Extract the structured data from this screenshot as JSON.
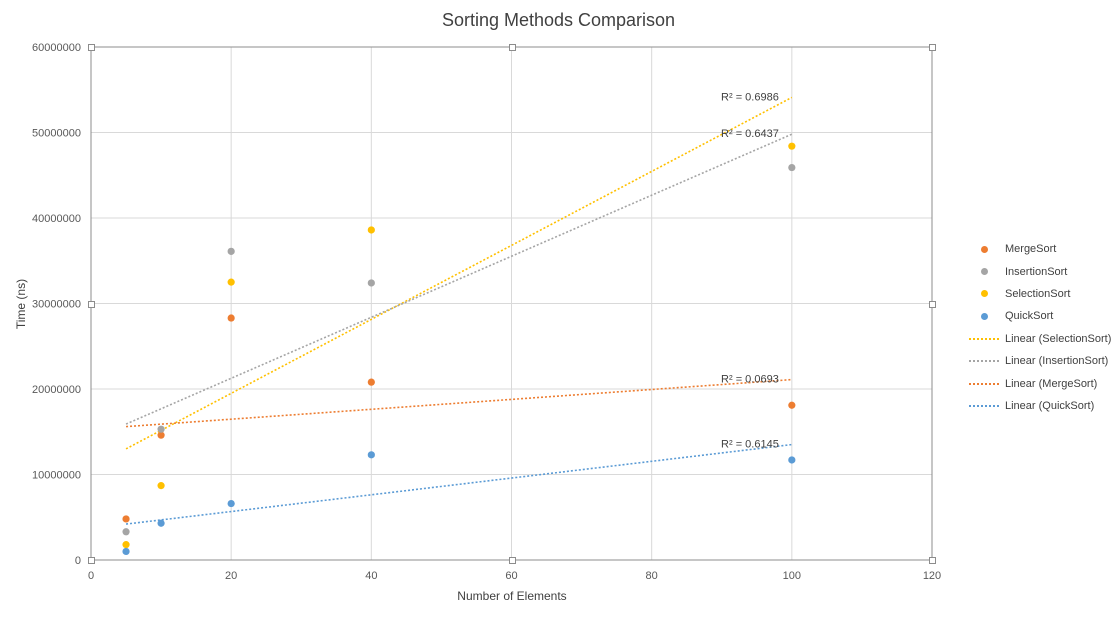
{
  "chart_data": {
    "type": "scatter",
    "title": "Sorting Methods Comparison",
    "xlabel": "Number of Elements",
    "ylabel": "Time (ns)",
    "xlim": [
      0,
      120
    ],
    "ylim": [
      0,
      60000000
    ],
    "x_ticks": [
      0,
      20,
      40,
      60,
      80,
      100,
      120
    ],
    "y_ticks": [
      0,
      10000000,
      20000000,
      30000000,
      40000000,
      50000000,
      60000000
    ],
    "x_tick_labels": [
      "0",
      "20",
      "40",
      "60",
      "80",
      "100",
      "120"
    ],
    "y_tick_labels": [
      "0",
      "10000000",
      "20000000",
      "30000000",
      "40000000",
      "50000000",
      "60000000"
    ],
    "grid": true,
    "legend_position": "right",
    "series": [
      {
        "name": "MergeSort",
        "color": "#ed7d31",
        "x": [
          5,
          10,
          20,
          40,
          100
        ],
        "y": [
          4800000,
          14600000,
          28300000,
          20800000,
          18100000
        ]
      },
      {
        "name": "InsertionSort",
        "color": "#a5a5a5",
        "x": [
          5,
          10,
          20,
          40,
          100
        ],
        "y": [
          3300000,
          15300000,
          36100000,
          32400000,
          45900000
        ]
      },
      {
        "name": "SelectionSort",
        "color": "#ffc000",
        "x": [
          5,
          10,
          20,
          40,
          100
        ],
        "y": [
          1800000,
          8700000,
          32500000,
          38600000,
          48400000
        ]
      },
      {
        "name": "QuickSort",
        "color": "#5b9bd5",
        "x": [
          5,
          10,
          20,
          40,
          100
        ],
        "y": [
          1000000,
          4300000,
          6600000,
          12300000,
          11700000
        ]
      }
    ],
    "trendlines": [
      {
        "name": "Linear (SelectionSort)",
        "color": "#ffc000",
        "type": "linear",
        "from": [
          5,
          13000000
        ],
        "to": [
          100,
          54100000
        ],
        "r2_label": "R² = 0.6986"
      },
      {
        "name": "Linear (InsertionSort)",
        "color": "#a5a5a5",
        "type": "linear",
        "from": [
          5,
          15900000
        ],
        "to": [
          100,
          49800000
        ],
        "r2_label": "R² = 0.6437"
      },
      {
        "name": "Linear (MergeSort)",
        "color": "#ed7d31",
        "type": "linear",
        "from": [
          5,
          15600000
        ],
        "to": [
          100,
          21100000
        ],
        "r2_label": "R² = 0.0693"
      },
      {
        "name": "Linear (QuickSort)",
        "color": "#5b9bd5",
        "type": "linear",
        "from": [
          5,
          4200000
        ],
        "to": [
          100,
          13500000
        ],
        "r2_label": "R² = 0.6145"
      }
    ],
    "legend": [
      {
        "label": "MergeSort",
        "kind": "marker",
        "color": "#ed7d31"
      },
      {
        "label": "InsertionSort",
        "kind": "marker",
        "color": "#a5a5a5"
      },
      {
        "label": "SelectionSort",
        "kind": "marker",
        "color": "#ffc000"
      },
      {
        "label": "QuickSort",
        "kind": "marker",
        "color": "#5b9bd5"
      },
      {
        "label": "Linear (SelectionSort)",
        "kind": "line",
        "color": "#ffc000"
      },
      {
        "label": "Linear (InsertionSort)",
        "kind": "line",
        "color": "#a5a5a5"
      },
      {
        "label": "Linear (MergeSort)",
        "kind": "line",
        "color": "#ed7d31"
      },
      {
        "label": "Linear (QuickSort)",
        "kind": "line",
        "color": "#5b9bd5"
      }
    ]
  }
}
